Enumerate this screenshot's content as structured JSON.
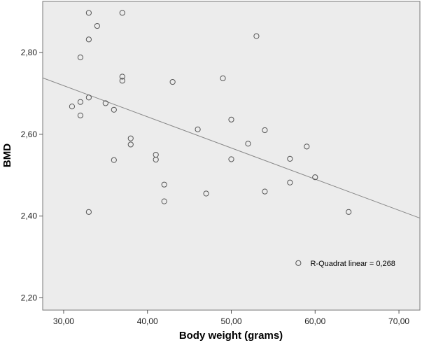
{
  "chart_data": {
    "type": "scatter",
    "xlabel": "Body weight (grams)",
    "ylabel": "BMD",
    "xlim": [
      27.5,
      72.5
    ],
    "ylim": [
      2.17,
      2.925
    ],
    "xticks": [
      30,
      40,
      50,
      60,
      70
    ],
    "yticks": [
      2.2,
      2.4,
      2.6,
      2.8
    ],
    "xtick_labels": [
      "30,00",
      "40,00",
      "50,00",
      "60,00",
      "70,00"
    ],
    "ytick_labels": [
      "2,20",
      "2,40",
      "2,60",
      "2,80"
    ],
    "grid": false,
    "colors": {
      "plot_bg": "#ececec",
      "point_stroke": "#555555",
      "line": "#888888",
      "frame": "#777777"
    },
    "points": [
      {
        "x": 33,
        "y": 2.897
      },
      {
        "x": 37,
        "y": 2.897
      },
      {
        "x": 34,
        "y": 2.865
      },
      {
        "x": 33,
        "y": 2.832
      },
      {
        "x": 53,
        "y": 2.84
      },
      {
        "x": 32,
        "y": 2.788
      },
      {
        "x": 37,
        "y": 2.741
      },
      {
        "x": 37,
        "y": 2.731
      },
      {
        "x": 49,
        "y": 2.737
      },
      {
        "x": 43,
        "y": 2.728
      },
      {
        "x": 33,
        "y": 2.69
      },
      {
        "x": 32,
        "y": 2.679
      },
      {
        "x": 35,
        "y": 2.676
      },
      {
        "x": 31,
        "y": 2.668
      },
      {
        "x": 36,
        "y": 2.66
      },
      {
        "x": 32,
        "y": 2.646
      },
      {
        "x": 50,
        "y": 2.636
      },
      {
        "x": 46,
        "y": 2.612
      },
      {
        "x": 54,
        "y": 2.61
      },
      {
        "x": 38,
        "y": 2.59
      },
      {
        "x": 38,
        "y": 2.575
      },
      {
        "x": 52,
        "y": 2.577
      },
      {
        "x": 59,
        "y": 2.57
      },
      {
        "x": 41,
        "y": 2.55
      },
      {
        "x": 41,
        "y": 2.538
      },
      {
        "x": 36,
        "y": 2.537
      },
      {
        "x": 50,
        "y": 2.539
      },
      {
        "x": 57,
        "y": 2.54
      },
      {
        "x": 60,
        "y": 2.495
      },
      {
        "x": 57,
        "y": 2.482
      },
      {
        "x": 42,
        "y": 2.477
      },
      {
        "x": 54,
        "y": 2.46
      },
      {
        "x": 47,
        "y": 2.455
      },
      {
        "x": 42,
        "y": 2.436
      },
      {
        "x": 33,
        "y": 2.41
      },
      {
        "x": 64,
        "y": 2.41
      },
      {
        "x": 58,
        "y": 2.285
      }
    ],
    "fit_line": {
      "x": [
        27.5,
        72.5
      ],
      "y": [
        2.738,
        2.395
      ]
    },
    "annotation": {
      "text": "R-Quadrat linear = 0,268",
      "x": 64.5,
      "y": 2.285
    }
  }
}
